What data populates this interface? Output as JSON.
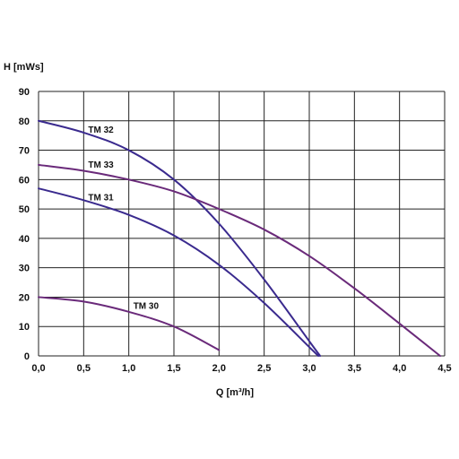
{
  "chart_data": {
    "type": "line",
    "xlabel": "Q [m³/h]",
    "ylabel": "H [mWs]",
    "xlim": [
      0,
      4.5
    ],
    "ylim": [
      0,
      90
    ],
    "x_ticks": [
      0,
      0.5,
      1,
      1.5,
      2,
      2.5,
      3,
      3.5,
      4,
      4.5
    ],
    "x_tick_labels": [
      "0,0",
      "0,5",
      "1,0",
      "1,5",
      "2,0",
      "2,5",
      "3,0",
      "3,5",
      "4,0",
      "4,5"
    ],
    "y_ticks": [
      0,
      10,
      20,
      30,
      40,
      50,
      60,
      70,
      80,
      90
    ],
    "y_tick_labels": [
      "0",
      "10",
      "20",
      "30",
      "40",
      "50",
      "60",
      "70",
      "80",
      "90"
    ],
    "grid": true,
    "legend": "none",
    "series": [
      {
        "name": "TM 32",
        "color": "#3a2a8e",
        "label_at": [
          0.55,
          76
        ],
        "points": [
          [
            0,
            80
          ],
          [
            0.5,
            76
          ],
          [
            1.0,
            70
          ],
          [
            1.5,
            60
          ],
          [
            2.0,
            45
          ],
          [
            2.5,
            26
          ],
          [
            3.0,
            5
          ],
          [
            3.12,
            0
          ]
        ]
      },
      {
        "name": "TM 33",
        "color": "#6a2a7a",
        "label_at": [
          0.55,
          64
        ],
        "points": [
          [
            0,
            65
          ],
          [
            0.5,
            63
          ],
          [
            1.0,
            60
          ],
          [
            1.5,
            56
          ],
          [
            2.0,
            50
          ],
          [
            2.5,
            43
          ],
          [
            3.0,
            34
          ],
          [
            3.5,
            23
          ],
          [
            4.0,
            11
          ],
          [
            4.45,
            0
          ]
        ]
      },
      {
        "name": "TM 31",
        "color": "#3a2a8e",
        "label_at": [
          0.55,
          53
        ],
        "points": [
          [
            0,
            57
          ],
          [
            0.5,
            53
          ],
          [
            1.0,
            48
          ],
          [
            1.5,
            41
          ],
          [
            2.0,
            31
          ],
          [
            2.5,
            18
          ],
          [
            3.0,
            3
          ],
          [
            3.1,
            0
          ]
        ]
      },
      {
        "name": "TM 30",
        "color": "#6a2a7a",
        "label_at": [
          1.05,
          16
        ],
        "points": [
          [
            0,
            20
          ],
          [
            0.5,
            18.5
          ],
          [
            1.0,
            15
          ],
          [
            1.5,
            10
          ],
          [
            2.0,
            2
          ]
        ]
      }
    ]
  }
}
